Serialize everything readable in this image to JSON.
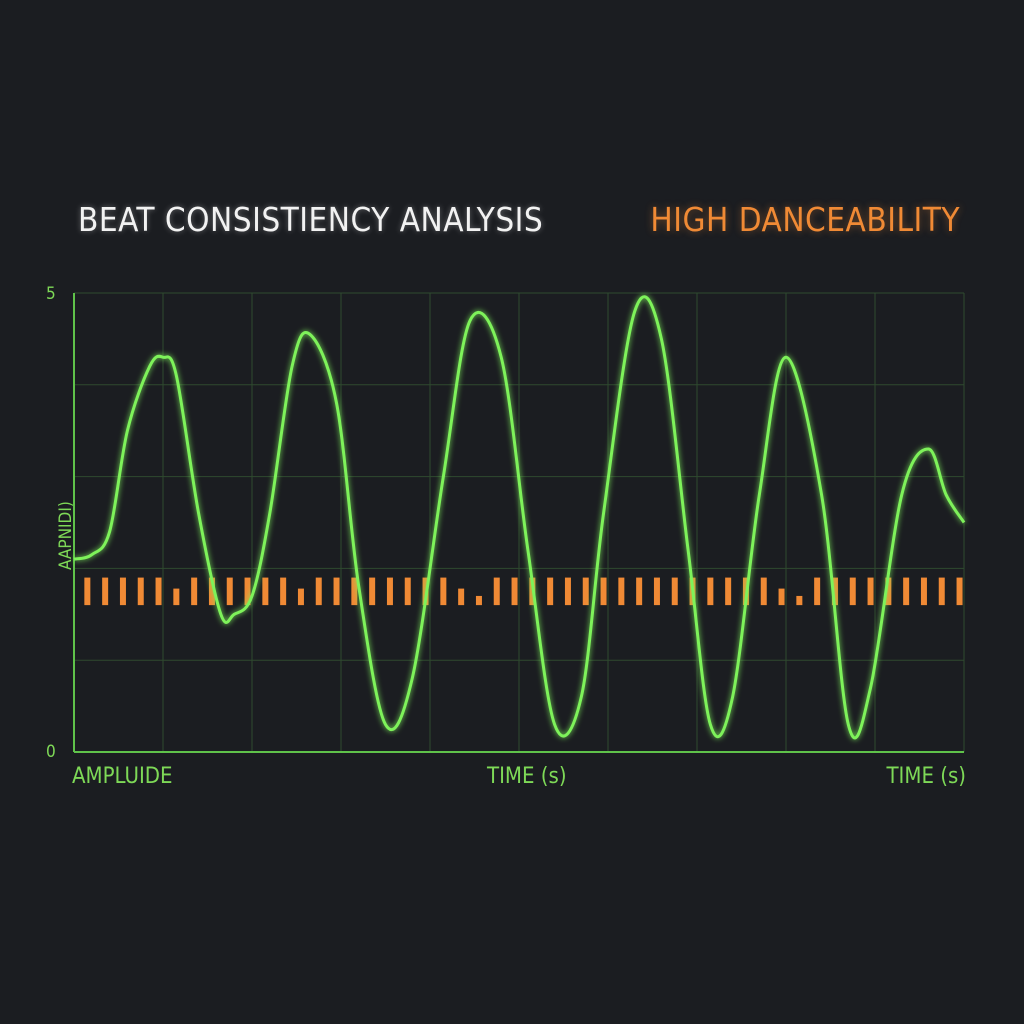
{
  "header": {
    "title": "BEAT CONSISTIENCY ANALYSIS",
    "badge": "HIGH DANCEABILITY"
  },
  "colors": {
    "background": "#1b1d21",
    "wave": "#7ef25a",
    "accent": "#f08a35",
    "grid": "#2f4a2f",
    "axis": "#5fc24a"
  },
  "chart_data": {
    "type": "line",
    "title": "BEAT CONSISTIENCY ANALYSIS",
    "ylabel": "AAPNIDI)",
    "xlabels": [
      "AMPLUIDE",
      "TIME (s)",
      "TIME (s)"
    ],
    "y_ticks": [
      "5",
      "0"
    ],
    "ylim": [
      0,
      5
    ],
    "xlim": [
      0,
      10
    ],
    "grid": true,
    "baseline": 2.5,
    "series": [
      {
        "x": [
          0,
          0.2,
          0.4,
          0.6,
          0.85,
          1.0,
          1.15,
          1.4,
          1.65,
          1.8,
          2.0,
          2.2,
          2.45,
          2.65,
          2.95,
          3.2,
          3.5,
          3.8,
          4.15,
          4.45,
          4.8,
          5.1,
          5.4,
          5.7,
          5.95,
          6.3,
          6.6,
          6.9,
          7.15,
          7.4,
          7.7,
          8.0,
          8.4,
          8.7,
          8.95,
          9.3,
          9.6,
          9.8,
          10.0
        ],
        "y": [
          2.1,
          2.15,
          2.4,
          3.5,
          4.2,
          4.3,
          4.1,
          2.6,
          1.5,
          1.5,
          1.7,
          2.6,
          4.2,
          4.55,
          3.8,
          1.8,
          0.3,
          0.8,
          3.0,
          4.7,
          4.3,
          2.2,
          0.3,
          0.6,
          2.6,
          4.8,
          4.5,
          2.2,
          0.3,
          0.6,
          2.8,
          4.3,
          2.8,
          0.3,
          0.7,
          2.8,
          3.3,
          2.8,
          2.5
        ]
      }
    ],
    "beat_bars": [
      {
        "x": 0.15,
        "h": 0.3
      },
      {
        "x": 0.35,
        "h": 0.3
      },
      {
        "x": 0.55,
        "h": 0.3
      },
      {
        "x": 0.75,
        "h": 0.3
      },
      {
        "x": 0.95,
        "h": 0.3
      },
      {
        "x": 1.15,
        "h": 0.18
      },
      {
        "x": 1.35,
        "h": 0.3
      },
      {
        "x": 1.55,
        "h": 0.3
      },
      {
        "x": 1.75,
        "h": 0.3
      },
      {
        "x": 1.95,
        "h": 0.3
      },
      {
        "x": 2.15,
        "h": 0.3
      },
      {
        "x": 2.35,
        "h": 0.3
      },
      {
        "x": 2.55,
        "h": 0.18
      },
      {
        "x": 2.75,
        "h": 0.3
      },
      {
        "x": 2.95,
        "h": 0.3
      },
      {
        "x": 3.15,
        "h": 0.3
      },
      {
        "x": 3.35,
        "h": 0.3
      },
      {
        "x": 3.55,
        "h": 0.3
      },
      {
        "x": 3.75,
        "h": 0.3
      },
      {
        "x": 3.95,
        "h": 0.3
      },
      {
        "x": 4.15,
        "h": 0.3
      },
      {
        "x": 4.35,
        "h": 0.18
      },
      {
        "x": 4.55,
        "h": 0.1
      },
      {
        "x": 4.75,
        "h": 0.3
      },
      {
        "x": 4.95,
        "h": 0.3
      },
      {
        "x": 5.15,
        "h": 0.3
      },
      {
        "x": 5.35,
        "h": 0.3
      },
      {
        "x": 5.55,
        "h": 0.3
      },
      {
        "x": 5.75,
        "h": 0.3
      },
      {
        "x": 5.95,
        "h": 0.3
      },
      {
        "x": 6.15,
        "h": 0.3
      },
      {
        "x": 6.35,
        "h": 0.3
      },
      {
        "x": 6.55,
        "h": 0.3
      },
      {
        "x": 6.75,
        "h": 0.3
      },
      {
        "x": 6.95,
        "h": 0.3
      },
      {
        "x": 7.15,
        "h": 0.3
      },
      {
        "x": 7.35,
        "h": 0.3
      },
      {
        "x": 7.55,
        "h": 0.3
      },
      {
        "x": 7.75,
        "h": 0.3
      },
      {
        "x": 7.95,
        "h": 0.18
      },
      {
        "x": 8.15,
        "h": 0.1
      },
      {
        "x": 8.35,
        "h": 0.3
      },
      {
        "x": 8.55,
        "h": 0.3
      },
      {
        "x": 8.75,
        "h": 0.3
      },
      {
        "x": 8.95,
        "h": 0.3
      },
      {
        "x": 9.15,
        "h": 0.3
      },
      {
        "x": 9.35,
        "h": 0.3
      },
      {
        "x": 9.55,
        "h": 0.3
      },
      {
        "x": 9.75,
        "h": 0.3
      },
      {
        "x": 9.95,
        "h": 0.3
      }
    ]
  }
}
